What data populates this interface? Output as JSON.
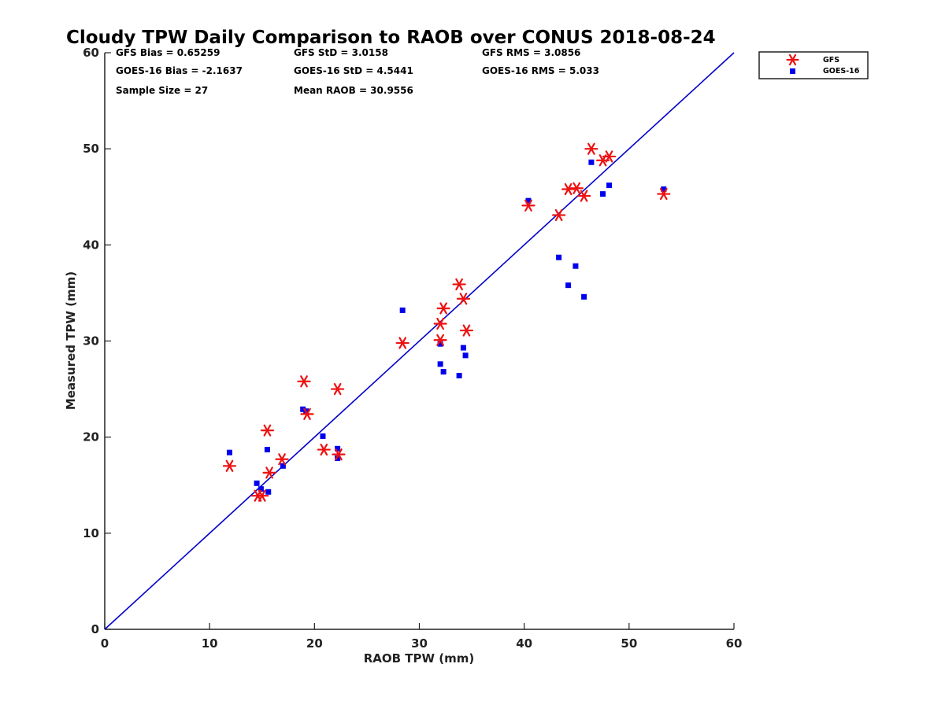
{
  "chart_data": {
    "type": "scatter",
    "title": "Cloudy TPW Daily Comparison to RAOB over CONUS 2018-08-24",
    "xlabel": "RAOB TPW (mm)",
    "ylabel": "Measured TPW (mm)",
    "xlim": [
      0,
      60
    ],
    "ylim": [
      0,
      60
    ],
    "xticks": [
      "0",
      "10",
      "20",
      "30",
      "40",
      "50",
      "60"
    ],
    "yticks": [
      "0",
      "10",
      "20",
      "30",
      "40",
      "50",
      "60"
    ],
    "grid": false,
    "legend_position": "top-right-outside",
    "reference_line": {
      "x": [
        0,
        60
      ],
      "y": [
        0,
        60
      ],
      "color": "#0000cc"
    },
    "annotations": [
      "GFS Bias = 0.65259",
      "GFS StD = 3.0158",
      "GFS RMS = 3.0856",
      "GOES-16 Bias = -2.1637",
      "GOES-16 StD = 4.5441",
      "GOES-16 RMS = 5.033",
      "Sample Size = 27",
      "Mean RAOB = 30.9556"
    ],
    "series": [
      {
        "name": "GFS",
        "marker": "asterisk",
        "color": "#ee1111",
        "x": [
          11.9,
          14.6,
          15.0,
          15.5,
          15.7,
          16.9,
          19.0,
          19.3,
          20.9,
          22.2,
          22.3,
          28.4,
          32.0,
          32.0,
          32.3,
          33.8,
          34.2,
          34.5,
          40.4,
          43.3,
          44.2,
          45.0,
          45.7,
          46.4,
          47.5,
          48.1,
          53.3
        ],
        "y": [
          17.0,
          13.9,
          13.9,
          20.7,
          16.3,
          17.7,
          25.8,
          22.4,
          18.7,
          25.0,
          18.2,
          29.8,
          31.8,
          30.1,
          33.4,
          35.9,
          34.4,
          31.1,
          44.1,
          43.1,
          45.8,
          45.9,
          45.1,
          50.0,
          48.8,
          49.2,
          45.3
        ]
      },
      {
        "name": "GOES-16",
        "marker": "square",
        "color": "#0000ee",
        "x": [
          11.9,
          14.5,
          14.9,
          15.5,
          15.6,
          17.0,
          18.9,
          19.2,
          20.8,
          22.2,
          22.2,
          28.4,
          32.0,
          32.0,
          32.3,
          33.8,
          34.2,
          34.4,
          40.4,
          43.3,
          44.2,
          44.9,
          45.7,
          46.4,
          47.5,
          48.1,
          53.3
        ],
        "y": [
          18.4,
          15.2,
          14.6,
          18.7,
          14.3,
          17.0,
          22.9,
          22.7,
          20.1,
          18.8,
          17.8,
          33.2,
          29.7,
          27.6,
          26.8,
          26.4,
          29.3,
          28.5,
          44.6,
          38.7,
          35.8,
          37.8,
          34.6,
          48.6,
          45.3,
          46.2,
          45.8
        ]
      }
    ]
  }
}
